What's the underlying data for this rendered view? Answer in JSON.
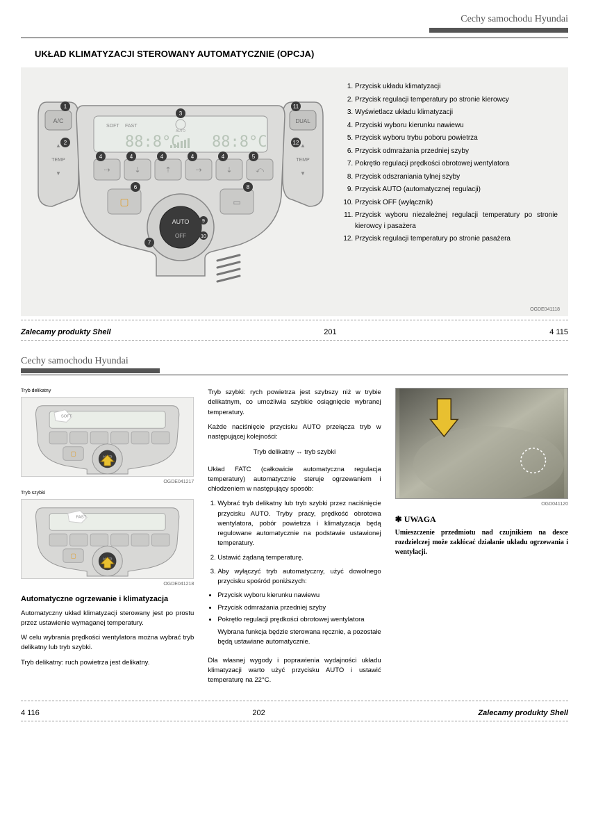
{
  "page1": {
    "header": "Cechy samochodu Hyundai",
    "title": "UKŁAD KLIMATYZACJI STEROWANY AUTOMATYCZNIE (OPCJA)",
    "diagram_code": "OGDE041118",
    "legend": [
      "Przycisk układu klimatyzacji",
      "Przycisk regulacji temperatury po stronie kierowcy",
      "Wyświetlacz układu klimatyzacji",
      "Przyciski wyboru kierunku nawiewu",
      "Przycisk wyboru trybu poboru powietrza",
      "Przycisk odmrażania przedniej szyby",
      "Pokrętło regulacji prędkości obrotowej wentylatora",
      "Przycisk odszraniania tylnej szyby",
      "Przycisk AUTO (automatycznej regulacji)",
      "Przycisk OFF (wyłącznik)",
      "Przycisk wyboru niezależnej regulacji temperatury po stronie kierowcy i pasażera",
      "Przycisk regulacji temperatury po stronie pasażera"
    ],
    "display": {
      "soft": "SOFT",
      "fast": "FAST",
      "auto": "AUTO",
      "temp": "88:8°C"
    },
    "knob": {
      "auto": "AUTO",
      "off": "OFF",
      "auto_num": "9",
      "off_num": "10"
    },
    "side": {
      "ac": "A/C",
      "temp": "TEMP",
      "dual": "DUAL"
    },
    "callouts": [
      "1",
      "2",
      "3",
      "4",
      "5",
      "6",
      "7",
      "8",
      "11",
      "12"
    ],
    "footer_shell": "Zalecamy produkty Shell",
    "footer_page": "201",
    "footer_right": "4  115"
  },
  "page2": {
    "header": "Cechy samochodu Hyundai",
    "col1": {
      "label1": "Tryb delikatny",
      "code1": "OGDE041217",
      "label2": "Tryb szybki",
      "code2": "OGDE041218",
      "heading": "Automatyczne ogrzewanie i klimatyzacja",
      "p1": "Automatyczny układ klimatyzacji sterowany jest po prostu przez ustawienie wymaganej temperatury.",
      "p2": "W celu wybrania prędkości wentylatora można wybrać tryb delikatny lub tryb szybki.",
      "p3": "Tryb delikatny: ruch powietrza jest delikatny."
    },
    "col2": {
      "p1": "Tryb szybki: rych powietrza jest szybszy niż w trybie delikatnym, co umożliwia szybkie osiągnięcie wybranej temperatury.",
      "p2": "Każde naciśnięcie przycisku AUTO przełącza tryb w następującej kolejności:",
      "toggle": "Tryb delikatny ↔ tryb szybki",
      "p3": "Układ FATC (całkowicie automatyczna regulacja temperatury) automatycznie steruje ogrzewaniem i chłodzeniem w następujący sposób:",
      "steps": [
        "Wybrać tryb delikatny lub tryb szybki przez naciśnięcie przycisku AUTO. Tryby pracy, prędkość obrotowa wentylatora, pobór powietrza i klimatyzacja będą regulowane automatycznie na podstawie ustawionej temperatury.",
        "Ustawić żądaną temperaturę.",
        "Aby wyłączyć tryb automatyczny, użyć dowolnego przycisku spośród poniższych:"
      ],
      "bullets": [
        "Przycisk wyboru kierunku nawiewu",
        "Przycisk odmrażania przedniej szyby",
        "Pokrętło regulacji prędkości obrotowej wentylatora"
      ],
      "p4": "Wybrana funkcja będzie sterowana ręcznie, a pozostałe będą ustawiane automatycznie.",
      "p5": "Dla własnej wygody i poprawienia wydajności układu klimatyzacji warto użyć przycisku AUTO i ustawić temperaturę na 22°C."
    },
    "col3": {
      "code": "OGD041120",
      "notice_star": "✱",
      "notice_title": "UWAGA",
      "notice_body": "Umieszczenie przedmiotu nad czujnikiem na desce rozdzielczej może zakłócać działanie układu ogrzewania i wentylacji."
    },
    "footer_left": "4  116",
    "footer_page": "202",
    "footer_shell": "Zalecamy produkty Shell"
  }
}
